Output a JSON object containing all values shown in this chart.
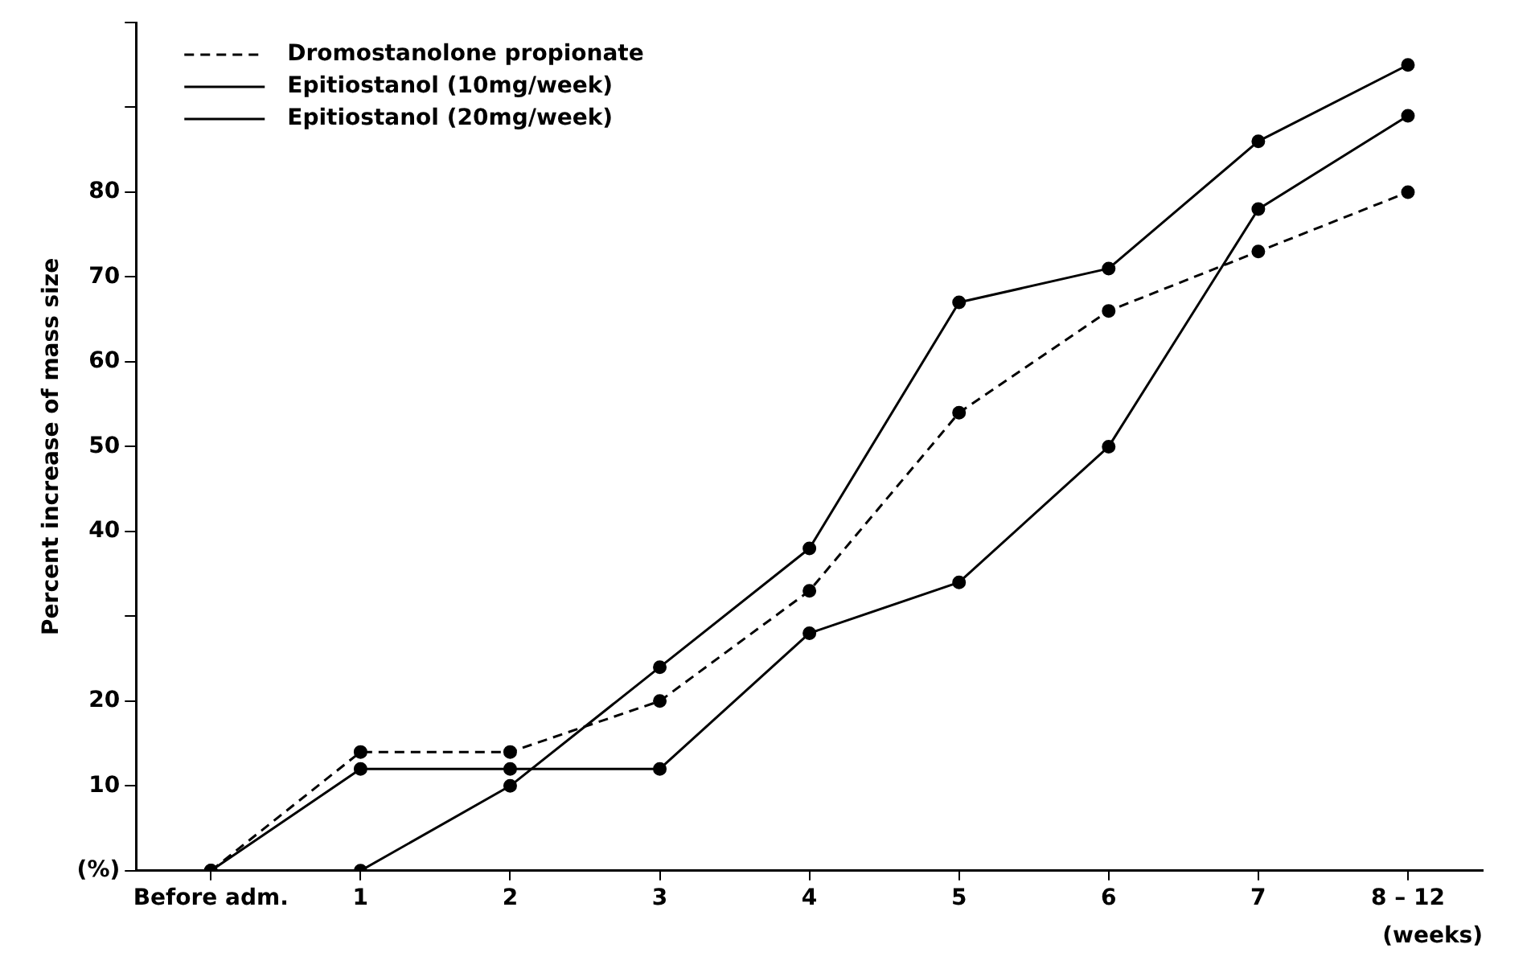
{
  "chart_data": {
    "type": "line",
    "ylabel": "Percent increase of mass size",
    "xlabel": "(weeks)",
    "categories": [
      "Before adm.",
      "1",
      "2",
      "3",
      "4",
      "5",
      "6",
      "7",
      "8 – 12"
    ],
    "series": [
      {
        "name": "Dromostanolone propionate",
        "color": "#000000",
        "line_style": "dashed",
        "values": [
          0,
          14,
          14,
          20,
          33,
          54,
          66,
          73,
          80
        ]
      },
      {
        "name": "Epitiostanol (10mg/week)",
        "color": "#000000",
        "line_style": "solid",
        "values": [
          0,
          12,
          12,
          12,
          28,
          34,
          50,
          78,
          89
        ]
      },
      {
        "name": "Epitiostanol (20mg/week)",
        "color": "#000000",
        "line_style": "solid",
        "values": [
          0,
          0,
          10,
          24,
          38,
          67,
          71,
          86,
          95
        ]
      }
    ],
    "ylim": [
      0,
      100
    ],
    "yticks": [
      {
        "value": 0,
        "label": "(%)"
      },
      10,
      20,
      {
        "value": 30,
        "label": null
      },
      40,
      50,
      60,
      70,
      80,
      {
        "value": 90,
        "label": null
      },
      {
        "value": 100,
        "label": null
      }
    ],
    "grid": false,
    "legend": "top left",
    "marker": "circle"
  }
}
